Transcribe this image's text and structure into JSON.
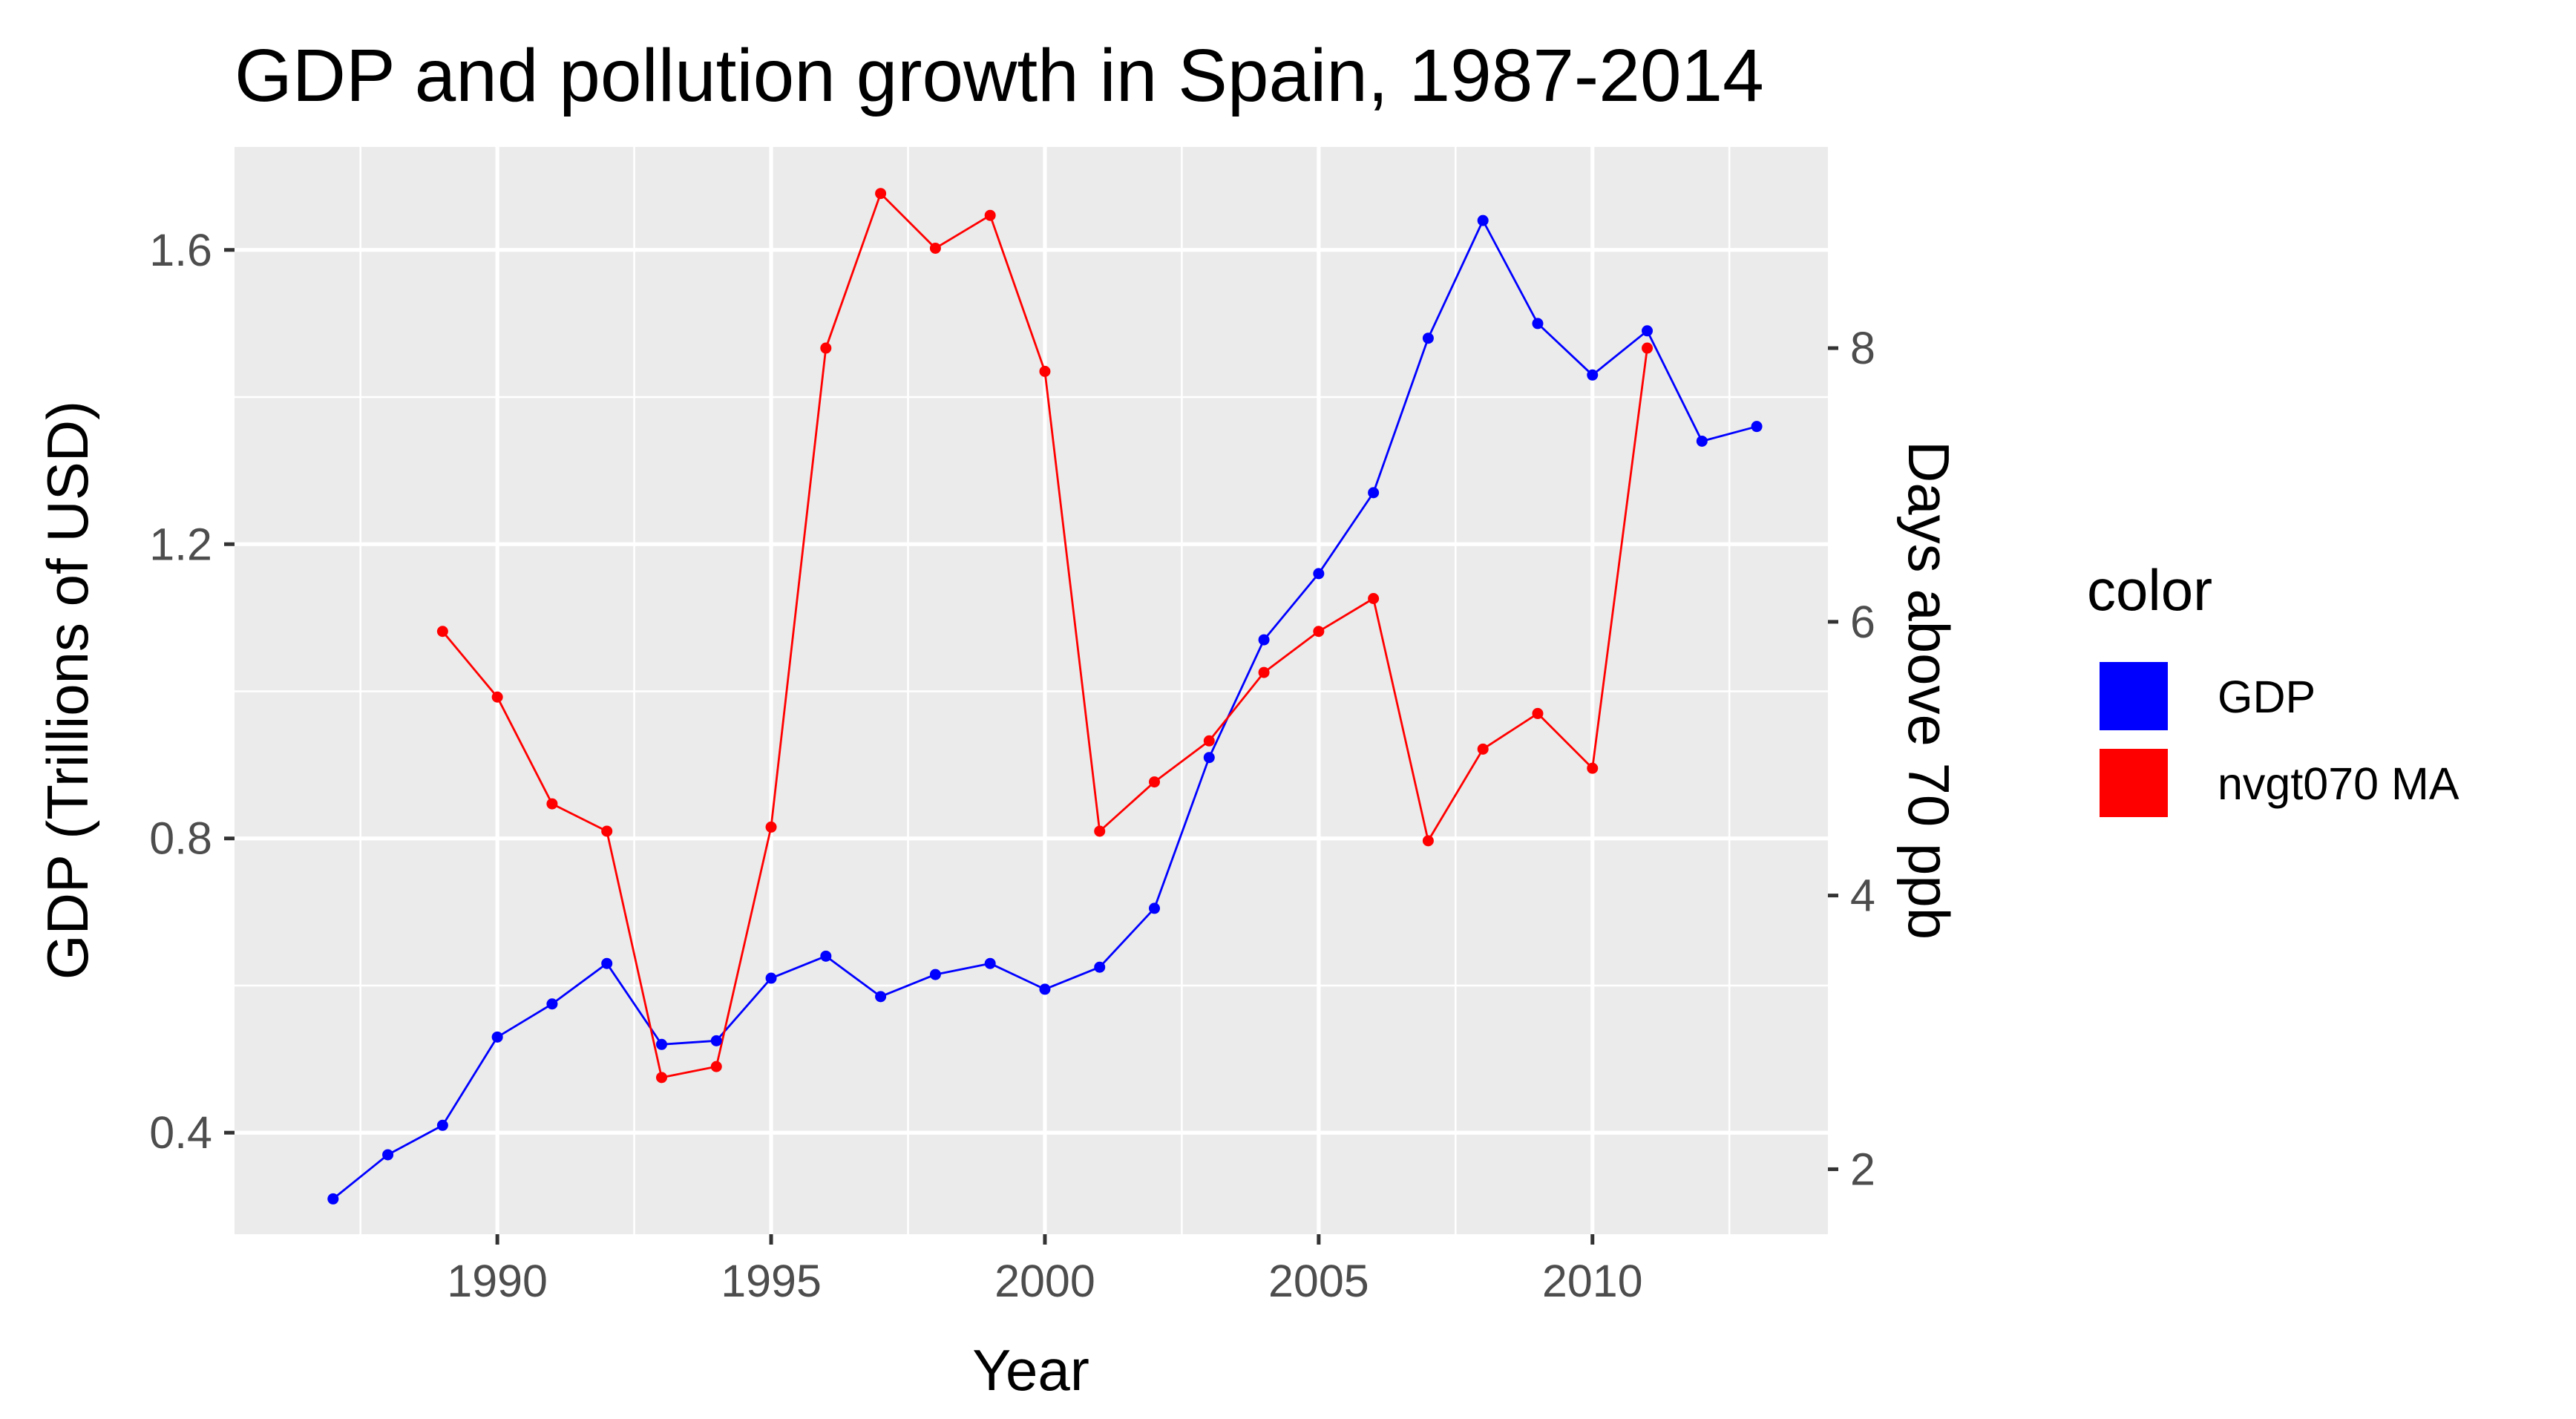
{
  "chart_data": {
    "type": "line",
    "title": "GDP and pollution growth in Spain, 1987-2014",
    "xlabel": "Year",
    "ylabel": "GDP (Trillions of USD)",
    "ylabel_right": "Days above 70 ppb",
    "xlim": [
      1985.2,
      2014.3
    ],
    "ylim": [
      0.262,
      1.74
    ],
    "ylim_right": [
      1.525,
      9.47
    ],
    "x_ticks": [
      1990,
      1995,
      2000,
      2005,
      2010
    ],
    "y_ticks": [
      0.4,
      0.8,
      1.2,
      1.6
    ],
    "y_ticks_right": [
      2,
      4,
      6,
      8
    ],
    "x_tick_labels": [
      "1990",
      "1995",
      "2000",
      "2005",
      "2010"
    ],
    "y_tick_labels": [
      "0.4",
      "0.8",
      "1.2",
      "1.6"
    ],
    "y_tick_labels_right": [
      "2",
      "4",
      "6",
      "8"
    ],
    "grid": true,
    "legend": {
      "title": "color",
      "placement": "right",
      "entries": [
        "GDP",
        "nvgt070 MA"
      ]
    },
    "series": [
      {
        "name": "GDP",
        "axis": "left",
        "color": "#0000ff",
        "x": [
          1987,
          1988,
          1989,
          1990,
          1991,
          1992,
          1993,
          1994,
          1995,
          1996,
          1997,
          1998,
          1999,
          2000,
          2001,
          2002,
          2003,
          2004,
          2005,
          2006,
          2007,
          2008,
          2009,
          2010,
          2011,
          2012,
          2013
        ],
        "y": [
          0.31,
          0.37,
          0.41,
          0.53,
          0.575,
          0.63,
          0.52,
          0.525,
          0.61,
          0.64,
          0.585,
          0.615,
          0.63,
          0.595,
          0.625,
          0.705,
          0.91,
          1.07,
          1.16,
          1.27,
          1.48,
          1.64,
          1.5,
          1.43,
          1.49,
          1.34,
          1.36
        ]
      },
      {
        "name": "nvgt070 MA",
        "axis": "right",
        "color": "#ff0000",
        "x": [
          1989,
          1990,
          1991,
          1992,
          1993,
          1994,
          1995,
          1996,
          1997,
          1998,
          1999,
          2000,
          2001,
          2002,
          2003,
          2004,
          2005,
          2006,
          2007,
          2008,
          2009,
          2010,
          2011
        ],
        "y": [
          5.93,
          5.45,
          4.67,
          4.47,
          2.67,
          2.75,
          4.5,
          8.0,
          9.13,
          8.73,
          8.97,
          7.83,
          4.47,
          4.83,
          5.13,
          5.63,
          5.93,
          6.17,
          4.4,
          5.07,
          5.33,
          4.93,
          8.0
        ]
      }
    ]
  }
}
